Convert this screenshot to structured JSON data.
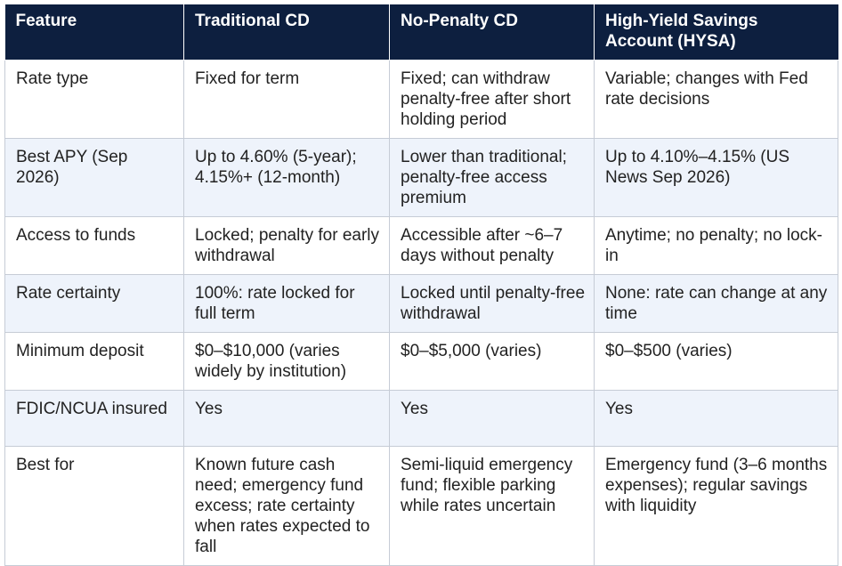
{
  "table": {
    "headers": [
      "Feature",
      "Traditional CD",
      "No-Penalty CD",
      "High-Yield Savings Account (HYSA)"
    ],
    "rows": [
      [
        "Rate type",
        "Fixed for term",
        "Fixed; can withdraw penalty-free after short holding period",
        "Variable; changes with Fed rate decisions"
      ],
      [
        "Best APY (Sep 2026)",
        "Up to 4.60% (5-year); 4.15%+ (12-month)",
        "Lower than traditional; penalty-free access premium",
        "Up to 4.10%–4.15% (US News Sep 2026)"
      ],
      [
        "Access to funds",
        "Locked; penalty for early withdrawal",
        "Accessible after ~6–7 days without penalty",
        "Anytime; no penalty; no lock-in"
      ],
      [
        "Rate certainty",
        "100%: rate locked for full term",
        "Locked until penalty-free withdrawal",
        "None: rate can change at any time"
      ],
      [
        "Minimum deposit",
        "$0–$10,000 (varies widely by institution)",
        "$0–$5,000 (varies)",
        "$0–$500 (varies)"
      ],
      [
        "FDIC/NCUA insured",
        "Yes",
        "Yes",
        "Yes"
      ],
      [
        "Best for",
        "Known future cash need; emergency fund excess; rate certainty when rates expected to fall",
        "Semi-liquid emergency fund; flexible parking while rates uncertain",
        "Emergency fund (3–6 months expenses); regular savings with liquidity"
      ]
    ]
  },
  "colors": {
    "header_bg": "#0d1f3f",
    "header_text": "#ffffff",
    "row_alt_bg": "#eef3fb",
    "border": "#c6ccd6"
  }
}
